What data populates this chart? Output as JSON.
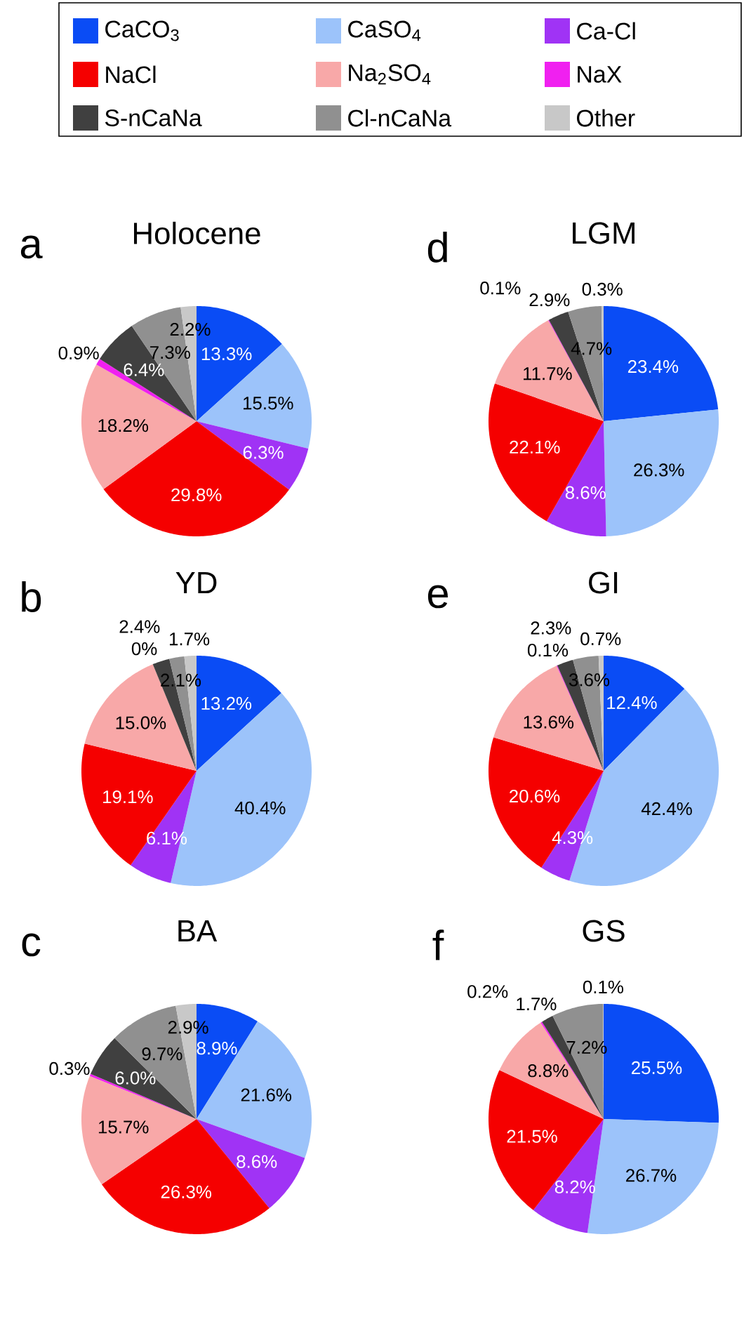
{
  "chart_data": [
    {
      "type": "pie",
      "title": "Holocene",
      "annotations": [
        "a"
      ],
      "legend": "top",
      "data_labels": true,
      "categories": [
        "CaCO$_{3}$",
        "CaSO$_{4}$",
        "Ca-Cl",
        "NaCl",
        "Na$_{2}$SO$_{4}$",
        "NaX",
        "S-nCaNa",
        "Cl-nCaNa",
        "Other"
      ],
      "colors": [
        "#0a4cf5",
        "#9cc3fa",
        "#a033f5",
        "#f50000",
        "#f8a8a8",
        "#f020f0",
        "#404040",
        "#909090",
        "#c8c8c8"
      ],
      "values": [
        13.3,
        15.5,
        6.3,
        29.8,
        18.2,
        0.9,
        6.4,
        7.3,
        2.2
      ],
      "value_labels": [
        "13.3%",
        "15.5%",
        "6.3%",
        "29.8%",
        "18.2%",
        "0.9%",
        "6.4%",
        "7.3%",
        "2.2%"
      ]
    },
    {
      "type": "pie",
      "title": "YD",
      "annotations": [
        "b"
      ],
      "data_labels": true,
      "colors": [
        "#0a4cf5",
        "#9cc3fa",
        "#a033f5",
        "#f50000",
        "#f8a8a8",
        "#f020f0",
        "#404040",
        "#909090",
        "#c8c8c8"
      ],
      "values": [
        13.2,
        40.4,
        6.1,
        19.1,
        15.0,
        0,
        2.4,
        2.1,
        1.7
      ],
      "value_labels": [
        "13.2%",
        "40.4%",
        "6.1%",
        "19.1%",
        "15.0%",
        "0%",
        "2.4%",
        "2.1%",
        "1.7%"
      ]
    },
    {
      "type": "pie",
      "title": "BA",
      "annotations": [
        "c"
      ],
      "data_labels": true,
      "colors": [
        "#0a4cf5",
        "#9cc3fa",
        "#a033f5",
        "#f50000",
        "#f8a8a8",
        "#f020f0",
        "#404040",
        "#909090",
        "#c8c8c8"
      ],
      "values": [
        8.9,
        21.6,
        8.6,
        26.3,
        15.7,
        0.3,
        6.0,
        9.7,
        2.9
      ],
      "value_labels": [
        "8.9%",
        "21.6%",
        "8.6%",
        "26.3%",
        "15.7%",
        "0.3%",
        "6.0%",
        "9.7%",
        "2.9%"
      ]
    },
    {
      "type": "pie",
      "title": "LGM",
      "annotations": [
        "d"
      ],
      "data_labels": true,
      "colors": [
        "#0a4cf5",
        "#9cc3fa",
        "#a033f5",
        "#f50000",
        "#f8a8a8",
        "#f020f0",
        "#404040",
        "#909090",
        "#c8c8c8"
      ],
      "values": [
        23.4,
        26.3,
        8.6,
        22.1,
        11.7,
        0.1,
        2.9,
        4.7,
        0.3
      ],
      "value_labels": [
        "23.4%",
        "26.3%",
        "8.6%",
        "22.1%",
        "11.7%",
        "0.1%",
        "2.9%",
        "4.7%",
        "0.3%"
      ]
    },
    {
      "type": "pie",
      "title": "GI",
      "annotations": [
        "e"
      ],
      "data_labels": true,
      "colors": [
        "#0a4cf5",
        "#9cc3fa",
        "#a033f5",
        "#f50000",
        "#f8a8a8",
        "#f020f0",
        "#404040",
        "#909090",
        "#c8c8c8"
      ],
      "values": [
        12.4,
        42.4,
        4.3,
        20.6,
        13.6,
        0.1,
        2.3,
        3.6,
        0.7
      ],
      "value_labels": [
        "12.4%",
        "42.4%",
        "4.3%",
        "20.6%",
        "13.6%",
        "0.1%",
        "2.3%",
        "3.6%",
        "0.7%"
      ]
    },
    {
      "type": "pie",
      "title": "GS",
      "annotations": [
        "f"
      ],
      "data_labels": true,
      "colors": [
        "#0a4cf5",
        "#9cc3fa",
        "#a033f5",
        "#f50000",
        "#f8a8a8",
        "#f020f0",
        "#404040",
        "#909090",
        "#c8c8c8"
      ],
      "values": [
        25.5,
        26.7,
        8.2,
        21.5,
        8.8,
        0.2,
        1.7,
        7.2,
        0.1
      ],
      "value_labels": [
        "25.5%",
        "26.7%",
        "8.2%",
        "21.5%",
        "8.8%",
        "0.2%",
        "1.7%",
        "7.2%",
        "0.1%"
      ]
    }
  ]
}
